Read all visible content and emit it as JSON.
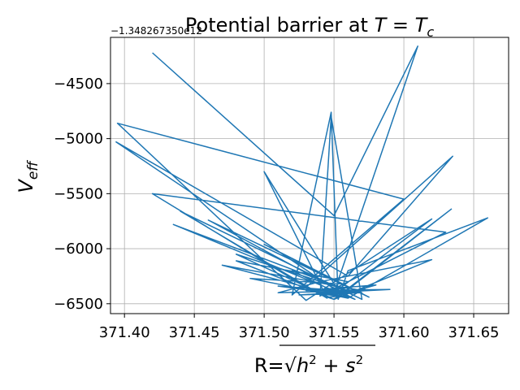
{
  "chart_data": {
    "type": "line",
    "title": "Potential barrier at T = T_c",
    "title_parts": {
      "prefix": "Potential barrier at ",
      "lhs": "T",
      "eq": " = ",
      "rhs": "T",
      "rhs_sub": "c"
    },
    "offset_text": "−1.348267350e12",
    "xlabel": "R=√h² + s²",
    "xlabel_parts": {
      "prefix": "R=",
      "radical": "√",
      "h": "h",
      "plus": " + ",
      "s": "s",
      "exp": "2"
    },
    "ylabel": "V_eff",
    "ylabel_parts": {
      "main": "V",
      "sub": "eff"
    },
    "xlim": [
      371.39,
      371.675
    ],
    "ylim": [
      -6590,
      -4080
    ],
    "xticks": [
      371.4,
      371.45,
      371.5,
      371.55,
      371.6,
      371.65
    ],
    "xtick_labels": [
      "371.40",
      "371.45",
      "371.50",
      "371.55",
      "371.60",
      "371.65"
    ],
    "yticks": [
      -4500,
      -5000,
      -5500,
      -6000,
      -6500
    ],
    "ytick_labels": [
      "−4500",
      "−5000",
      "−5500",
      "−6000",
      "−6500"
    ],
    "grid": true,
    "color": "#1f77b4",
    "series": [
      {
        "name": "V_eff",
        "x": [
          371.42,
          371.55,
          371.61,
          371.55,
          371.62,
          371.53,
          371.395,
          371.6,
          371.52,
          371.548,
          371.553,
          371.56,
          371.66,
          371.56,
          371.394,
          371.56,
          371.635,
          371.53,
          371.42,
          371.63,
          371.54,
          371.548,
          371.57,
          371.44,
          371.545,
          371.5,
          371.555,
          371.634,
          371.55,
          371.48,
          371.56,
          371.435,
          371.565,
          371.46,
          371.575,
          371.5,
          371.555,
          371.49,
          371.56,
          371.47,
          371.57,
          371.51,
          371.54,
          371.62,
          371.55,
          371.48,
          371.56,
          371.52,
          371.555,
          371.58,
          371.53,
          371.59,
          371.545,
          371.51,
          371.565,
          371.525,
          371.57,
          371.53,
          371.56,
          371.54,
          371.555,
          371.545,
          371.55
        ],
        "y": [
          -4220,
          -5700,
          -4160,
          -6400,
          -5730,
          -6470,
          -4860,
          -5550,
          -6420,
          -4760,
          -6460,
          -6200,
          -5720,
          -6450,
          -5030,
          -6250,
          -5160,
          -6350,
          -5500,
          -5850,
          -6430,
          -4800,
          -6460,
          -5660,
          -6450,
          -5300,
          -6420,
          -5640,
          -6460,
          -6050,
          -6380,
          -5780,
          -6460,
          -5740,
          -6440,
          -5960,
          -6320,
          -6270,
          -6450,
          -6150,
          -6380,
          -6400,
          -6300,
          -6100,
          -6460,
          -6110,
          -6300,
          -6200,
          -6420,
          -6330,
          -6380,
          -6370,
          -6400,
          -6340,
          -6390,
          -6420,
          -6400,
          -6360,
          -6440,
          -6410,
          -6430,
          -6440,
          -6460
        ]
      }
    ]
  }
}
